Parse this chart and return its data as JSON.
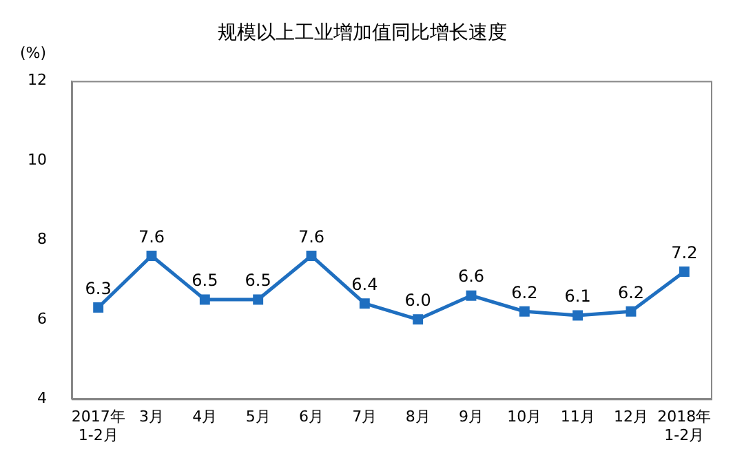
{
  "chart_data": {
    "type": "line",
    "title": "规模以上工业增加值同比增长速度",
    "ylabel": "(%)",
    "categories": [
      "2017年\n1-2月",
      "3月",
      "4月",
      "5月",
      "6月",
      "7月",
      "8月",
      "9月",
      "10月",
      "11月",
      "12月",
      "2018年\n1-2月"
    ],
    "series": [
      {
        "color": "#1f6fc0",
        "values": [
          6.3,
          7.6,
          6.5,
          6.5,
          7.6,
          6.4,
          6.0,
          6.6,
          6.2,
          6.1,
          6.2,
          7.2
        ],
        "value_labels": [
          "6.3",
          "7.6",
          "6.5",
          "6.5",
          "7.6",
          "6.4",
          "6.0",
          "6.6",
          "6.2",
          "6.1",
          "6.2",
          "7.2"
        ]
      }
    ],
    "ylim": [
      4,
      12
    ],
    "yticks": [
      4,
      6,
      8,
      10,
      12
    ],
    "grid": false,
    "legend": false,
    "marker": "square",
    "line_style": "solid"
  }
}
